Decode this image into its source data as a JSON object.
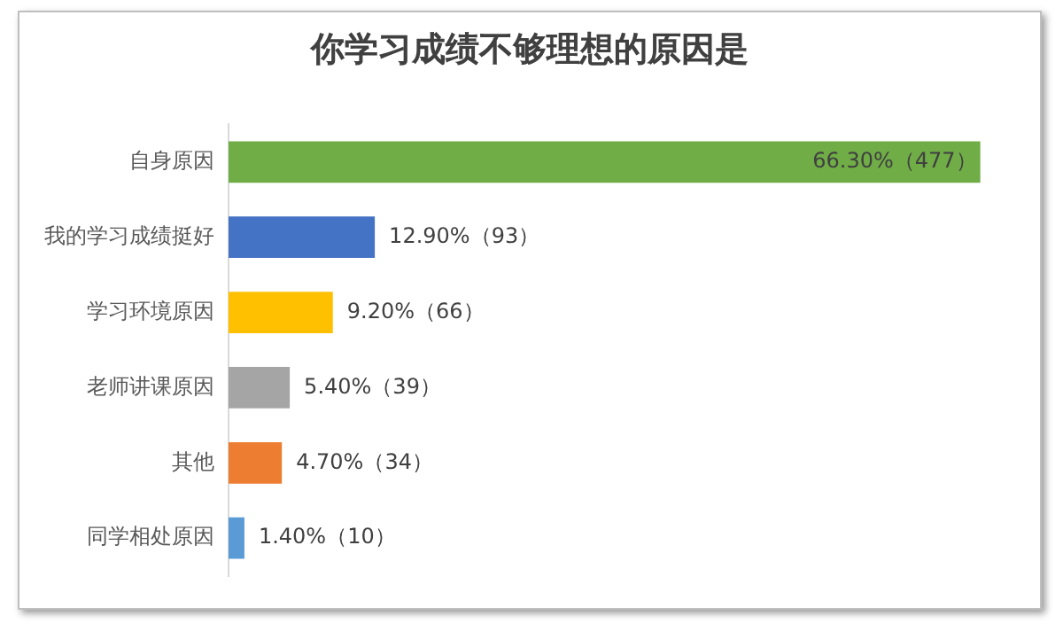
{
  "chart_data": {
    "type": "bar",
    "orientation": "horizontal",
    "title": "你学习成绩不够理想的原因是",
    "categories": [
      "自身原因",
      "我的学习成绩挺好",
      "学习环境原因",
      "老师讲课原因",
      "其他",
      "同学相处原因"
    ],
    "values": [
      66.3,
      12.9,
      9.2,
      5.4,
      4.7,
      1.4
    ],
    "colors": [
      "#70ad47",
      "#4472c4",
      "#ffc000",
      "#a5a5a5",
      "#ed7d31",
      "#5b9bd5"
    ],
    "value_labels": [
      "66.30%（477）",
      "12.90%（93）",
      "9.20%（66）",
      "5.40%（39）",
      "4.70%（34）",
      "1.40%（10）"
    ],
    "grid": false,
    "tick_labels": "y",
    "legend": false
  }
}
